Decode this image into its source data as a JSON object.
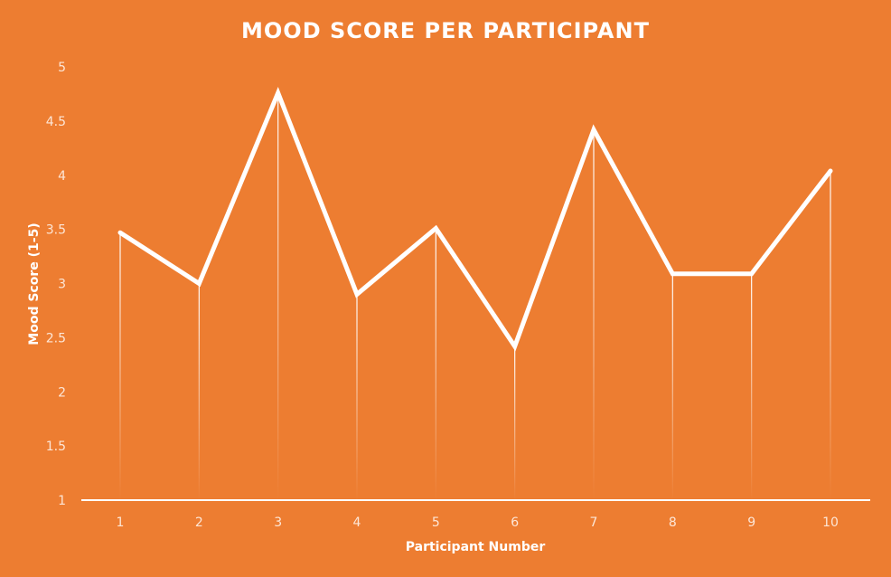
{
  "chart_data": {
    "type": "line",
    "title": "MOOD SCORE PER PARTICIPANT",
    "xlabel": "Participant Number",
    "ylabel": "Mood Score (1-5)",
    "categories": [
      "1",
      "2",
      "3",
      "4",
      "5",
      "6",
      "7",
      "8",
      "9",
      "10"
    ],
    "series": [
      {
        "values": [
          3.47,
          3.0,
          4.76,
          2.9,
          3.51,
          2.42,
          4.42,
          3.09,
          3.09,
          4.04
        ]
      }
    ],
    "ylim": [
      1,
      5
    ],
    "yticks": [
      "1",
      "1.5",
      "2",
      "2.5",
      "3",
      "3.5",
      "4",
      "4.5",
      "5"
    ],
    "drop_lines": true,
    "grid": false,
    "colors": {
      "background": "#ED7D31",
      "line": "#FFFFFF",
      "text": "#FFFFFF",
      "tick_text": "#FDE6D6"
    }
  }
}
